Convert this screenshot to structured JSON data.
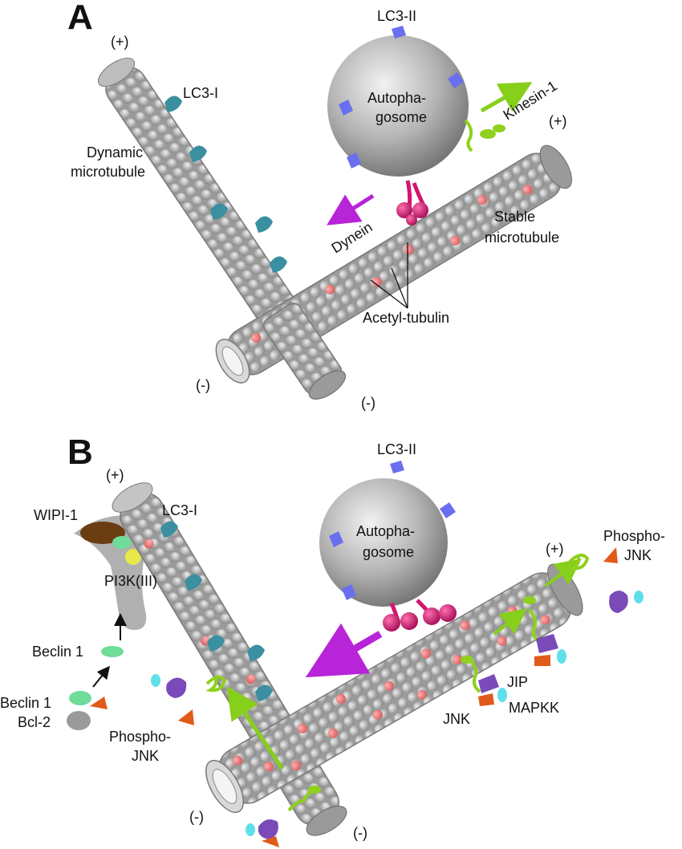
{
  "panel_a": {
    "letter": "A",
    "plus_left": "(+)",
    "plus_right": "(+)",
    "minus_left": "(-)",
    "minus_right": "(-)",
    "lc3_ii": "LC3-II",
    "lc3_i": "LC3-I",
    "autophagosome_1": "Autopha-",
    "autophagosome_2": "gosome",
    "kinesin": "Kinesin-1",
    "dynein": "Dynein",
    "dynamic_1": "Dynamic",
    "dynamic_2": "microtubule",
    "stable_1": "Stable",
    "stable_2": "microtubule",
    "acetyl": "Acetyl-tubulin"
  },
  "panel_b": {
    "letter": "B",
    "plus_left": "(+)",
    "plus_right": "(+)",
    "minus_left": "(-)",
    "minus_right": "(-)",
    "lc3_ii": "LC3-II",
    "lc3_i": "LC3-I",
    "autophagosome_1": "Autopha-",
    "autophagosome_2": "gosome",
    "wipi": "WIPI-1",
    "pi3k": "PI3K(III)",
    "beclin": "Beclin 1",
    "beclin2": "Beclin 1",
    "bcl2": "Bcl-2",
    "phospho_jnk_left_1": "Phospho-",
    "phospho_jnk_left_2": "JNK",
    "phospho_jnk_right_1": "Phospho-",
    "phospho_jnk_right_2": "JNK",
    "jip": "JIP",
    "jnk": "JNK",
    "mapkk": "MAPKK"
  },
  "colors": {
    "tubulin": "#a9a9a9",
    "acetyl": "#e87878",
    "lc3_i": "#3a8fa0",
    "lc3_ii": "#6a6ff0",
    "dynein": "#d4146f",
    "kinesin": "#8fd11c",
    "arrow_dynein": "#b824d8",
    "arrow_kinesin": "#86cf1a",
    "jnk": "#7a4ab8",
    "mapkk": "#e05a1a",
    "cyan": "#5ee0e8",
    "wipi": "#6b3e12",
    "pi3k": "#e8e84a",
    "beclin": "#6fdc9a"
  }
}
